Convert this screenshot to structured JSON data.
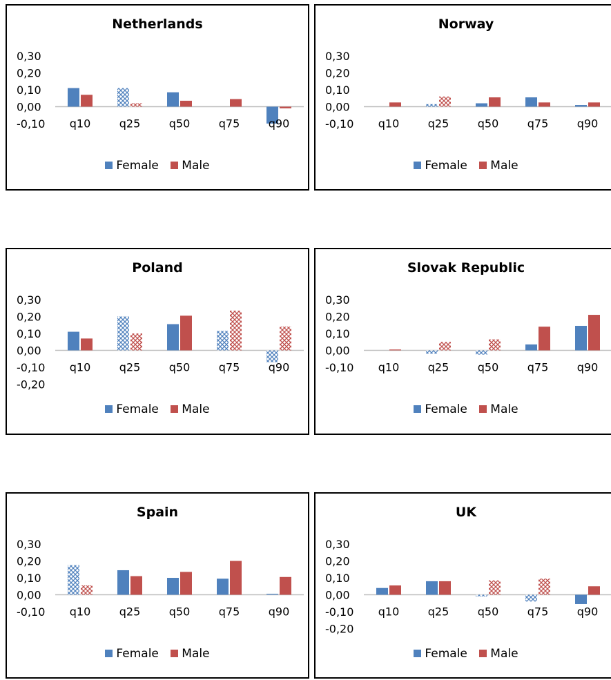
{
  "legend": {
    "female": "Female",
    "male": "Male"
  },
  "colors": {
    "female": "#4f81bd",
    "male": "#c0504d",
    "axis": "#bfbfbf",
    "text": "#000000"
  },
  "chart_data": [
    {
      "type": "bar",
      "title": "Netherlands",
      "categories": [
        "q10",
        "q25",
        "q50",
        "q75",
        "q90"
      ],
      "yticks": [
        "-0,10",
        "0,00",
        "0,10",
        "0,20",
        "0,30"
      ],
      "ylim": [
        -0.1,
        0.3
      ],
      "series": [
        {
          "name": "Female",
          "values": [
            0.11,
            0.11,
            0.085,
            0.0,
            -0.1
          ],
          "hatched": [
            false,
            true,
            false,
            false,
            false
          ]
        },
        {
          "name": "Male",
          "values": [
            0.07,
            0.02,
            0.035,
            0.045,
            -0.01
          ],
          "hatched": [
            false,
            true,
            false,
            false,
            false
          ]
        }
      ]
    },
    {
      "type": "bar",
      "title": "Norway",
      "categories": [
        "q10",
        "q25",
        "q50",
        "q75",
        "q90"
      ],
      "yticks": [
        "-0,10",
        "0,00",
        "0,10",
        "0,20",
        "0,30"
      ],
      "ylim": [
        -0.1,
        0.3
      ],
      "series": [
        {
          "name": "Female",
          "values": [
            0.0,
            0.015,
            0.02,
            0.055,
            0.01
          ],
          "hatched": [
            false,
            true,
            false,
            false,
            false
          ]
        },
        {
          "name": "Male",
          "values": [
            0.025,
            0.06,
            0.055,
            0.025,
            0.025
          ],
          "hatched": [
            false,
            true,
            false,
            false,
            false
          ]
        }
      ]
    },
    {
      "type": "bar",
      "title": "Poland",
      "categories": [
        "q10",
        "q25",
        "q50",
        "q75",
        "q90"
      ],
      "yticks": [
        "-0,20",
        "-0,10",
        "0,00",
        "0,10",
        "0,20",
        "0,30"
      ],
      "ylim": [
        -0.2,
        0.3
      ],
      "series": [
        {
          "name": "Female",
          "values": [
            0.11,
            0.2,
            0.155,
            0.115,
            -0.07
          ],
          "hatched": [
            false,
            true,
            false,
            true,
            true
          ]
        },
        {
          "name": "Male",
          "values": [
            0.07,
            0.1,
            0.205,
            0.235,
            0.14
          ],
          "hatched": [
            false,
            true,
            false,
            true,
            true
          ]
        }
      ]
    },
    {
      "type": "bar",
      "title": "Slovak Republic",
      "categories": [
        "q10",
        "q25",
        "q50",
        "q75",
        "q90"
      ],
      "yticks": [
        "-0,10",
        "0,00",
        "0,10",
        "0,20",
        "0,30"
      ],
      "ylim": [
        -0.1,
        0.3
      ],
      "series": [
        {
          "name": "Female",
          "values": [
            0.0,
            -0.02,
            -0.025,
            0.035,
            0.145
          ],
          "hatched": [
            false,
            true,
            true,
            false,
            false
          ]
        },
        {
          "name": "Male",
          "values": [
            0.005,
            0.05,
            0.065,
            0.14,
            0.21
          ],
          "hatched": [
            false,
            true,
            true,
            false,
            false
          ]
        }
      ]
    },
    {
      "type": "bar",
      "title": "Spain",
      "categories": [
        "q10",
        "q25",
        "q50",
        "q75",
        "q90"
      ],
      "yticks": [
        "-0,10",
        "0,00",
        "0,10",
        "0,20",
        "0,30"
      ],
      "ylim": [
        -0.1,
        0.3
      ],
      "series": [
        {
          "name": "Female",
          "values": [
            0.175,
            0.145,
            0.1,
            0.095,
            0.005
          ],
          "hatched": [
            true,
            false,
            false,
            false,
            false
          ]
        },
        {
          "name": "Male",
          "values": [
            0.055,
            0.11,
            0.135,
            0.2,
            0.105
          ],
          "hatched": [
            true,
            false,
            false,
            false,
            false
          ]
        }
      ]
    },
    {
      "type": "bar",
      "title": "UK",
      "categories": [
        "q10",
        "q25",
        "q50",
        "q75",
        "q90"
      ],
      "yticks": [
        "-0,20",
        "-0,10",
        "0,00",
        "0,10",
        "0,20",
        "0,30"
      ],
      "ylim": [
        -0.2,
        0.3
      ],
      "series": [
        {
          "name": "Female",
          "values": [
            0.04,
            0.08,
            -0.01,
            -0.04,
            -0.055
          ],
          "hatched": [
            false,
            false,
            true,
            true,
            false
          ]
        },
        {
          "name": "Male",
          "values": [
            0.055,
            0.08,
            0.085,
            0.095,
            0.05
          ],
          "hatched": [
            false,
            false,
            true,
            true,
            false
          ]
        }
      ]
    }
  ]
}
